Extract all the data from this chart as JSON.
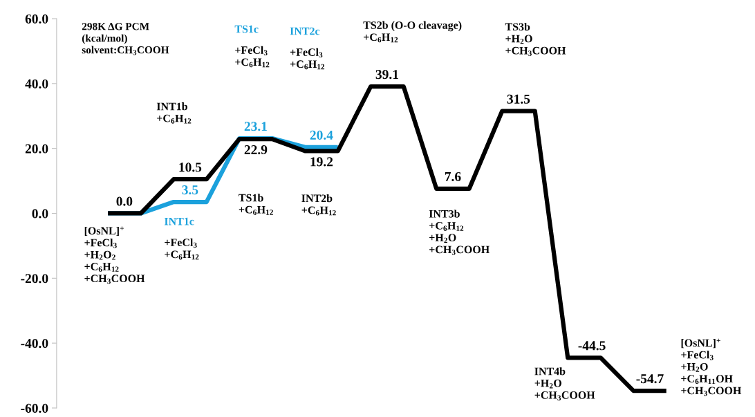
{
  "chart_data": {
    "type": "line",
    "title": "298K ΔG PCM\n(kcal/mol)\nsolvent:CH$_{3}$COOH",
    "categories": [
      null,
      null,
      null,
      null,
      null,
      null,
      null,
      null,
      null,
      null,
      null,
      null,
      null,
      null,
      null,
      null,
      null,
      null
    ],
    "series": [
      {
        "color": "#1ba1dc",
        "values": [
          0.0,
          0.0,
          3.5,
          3.5,
          23.1,
          23.1,
          20.4,
          20.4,
          null,
          null,
          null,
          null,
          null,
          null,
          null,
          null,
          null,
          null
        ],
        "value_labels": [
          null,
          null,
          "3.5",
          null,
          "23.1",
          null,
          "20.4",
          null,
          null,
          null,
          null,
          null,
          null,
          null,
          null,
          null,
          null,
          null
        ]
      },
      {
        "color": "#000000",
        "values": [
          0.0,
          0.0,
          10.5,
          10.5,
          22.9,
          22.9,
          19.2,
          19.2,
          39.1,
          39.1,
          7.6,
          7.6,
          31.5,
          31.5,
          -44.5,
          -44.5,
          -54.7,
          -54.7
        ],
        "value_labels": [
          "0.0",
          null,
          "10.5",
          null,
          "22.9",
          null,
          "19.2",
          null,
          "39.1",
          null,
          "7.6",
          null,
          "31.5",
          null,
          "-44.5",
          null,
          "-54.7",
          null
        ]
      }
    ],
    "annotations": [
      "[OsNL]$^{+}$\n+FeCl$_{3}$\n+H$_{2}$O$_{2}$\n+C$_{6}$H$_{12}$\n+CH$_{3}$COOH",
      "INT1b\n+C$_{6}$H$_{12}$",
      "TS1b\n+C$_{6}$H$_{12}$",
      "INT2b\n+C$_{6}$H$_{12}$",
      "TS2b (O-O cleavage)\n+C$_{6}$H$_{12}$",
      "INT3b\n+C$_{6}$H$_{12}$\n+H$_{2}$O\n+CH$_{3}$COOH",
      "TS3b\n+H$_{2}$O\n+CH$_{3}$COOH",
      "INT4b\n+H$_{2}$O\n+CH$_{3}$COOH",
      "[OsNL]$^{+}$\n+FeCl$_{3}$\n+H$_{2}$O\n+C$_{6}$H$_{11}$OH\n+CH$_{3}$COOH",
      "INT1c",
      "+FeCl$_{3}$\n+C$_{6}$H$_{12}$",
      "TS1c",
      "+FeCl$_{3}$\n+C$_{6}$H$_{12}$",
      "INT2c",
      "+FeCl$_{3}$\n+C$_{6}$H$_{12}$"
    ],
    "ylim": [
      -60,
      60
    ],
    "yticks": [
      {
        "value": -60,
        "label": "-60.0"
      },
      {
        "value": -40,
        "label": "-40.0"
      },
      {
        "value": -20,
        "label": "-20.0"
      },
      {
        "value": 0,
        "label": "0.0"
      },
      {
        "value": 20,
        "label": "20.0"
      },
      {
        "value": 40,
        "label": "40.0"
      },
      {
        "value": 60,
        "label": "60.0"
      }
    ],
    "tick_labels": "y"
  }
}
